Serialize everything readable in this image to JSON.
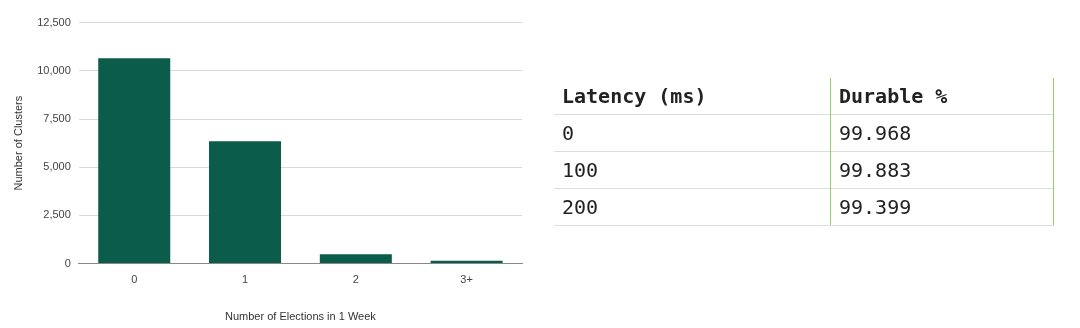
{
  "chart_data": [
    {
      "type": "bar",
      "categories": [
        "0",
        "1",
        "2",
        "3+"
      ],
      "values": [
        10650,
        6350,
        480,
        150
      ],
      "color": "#0b5c4a",
      "ylim": [
        0,
        12500
      ],
      "yticks": [
        0,
        {
          "value": 2500,
          "label": "2,500"
        },
        {
          "value": 5000,
          "label": "5,000"
        },
        {
          "value": 7500,
          "label": "7,500"
        },
        {
          "value": 10000,
          "label": "10,000"
        },
        {
          "value": 12500,
          "label": "12,500"
        }
      ],
      "grid": "y",
      "xlabel": "Number of Elections in 1 Week",
      "ylabel": "Number of Clusters"
    },
    {
      "type": "other",
      "xlabel": "Latency (ms)",
      "ylabel": "Durable %",
      "categories": [
        "0",
        "100",
        "200"
      ],
      "values": [
        99.968,
        99.883,
        99.399
      ],
      "data_labels": true
    }
  ]
}
